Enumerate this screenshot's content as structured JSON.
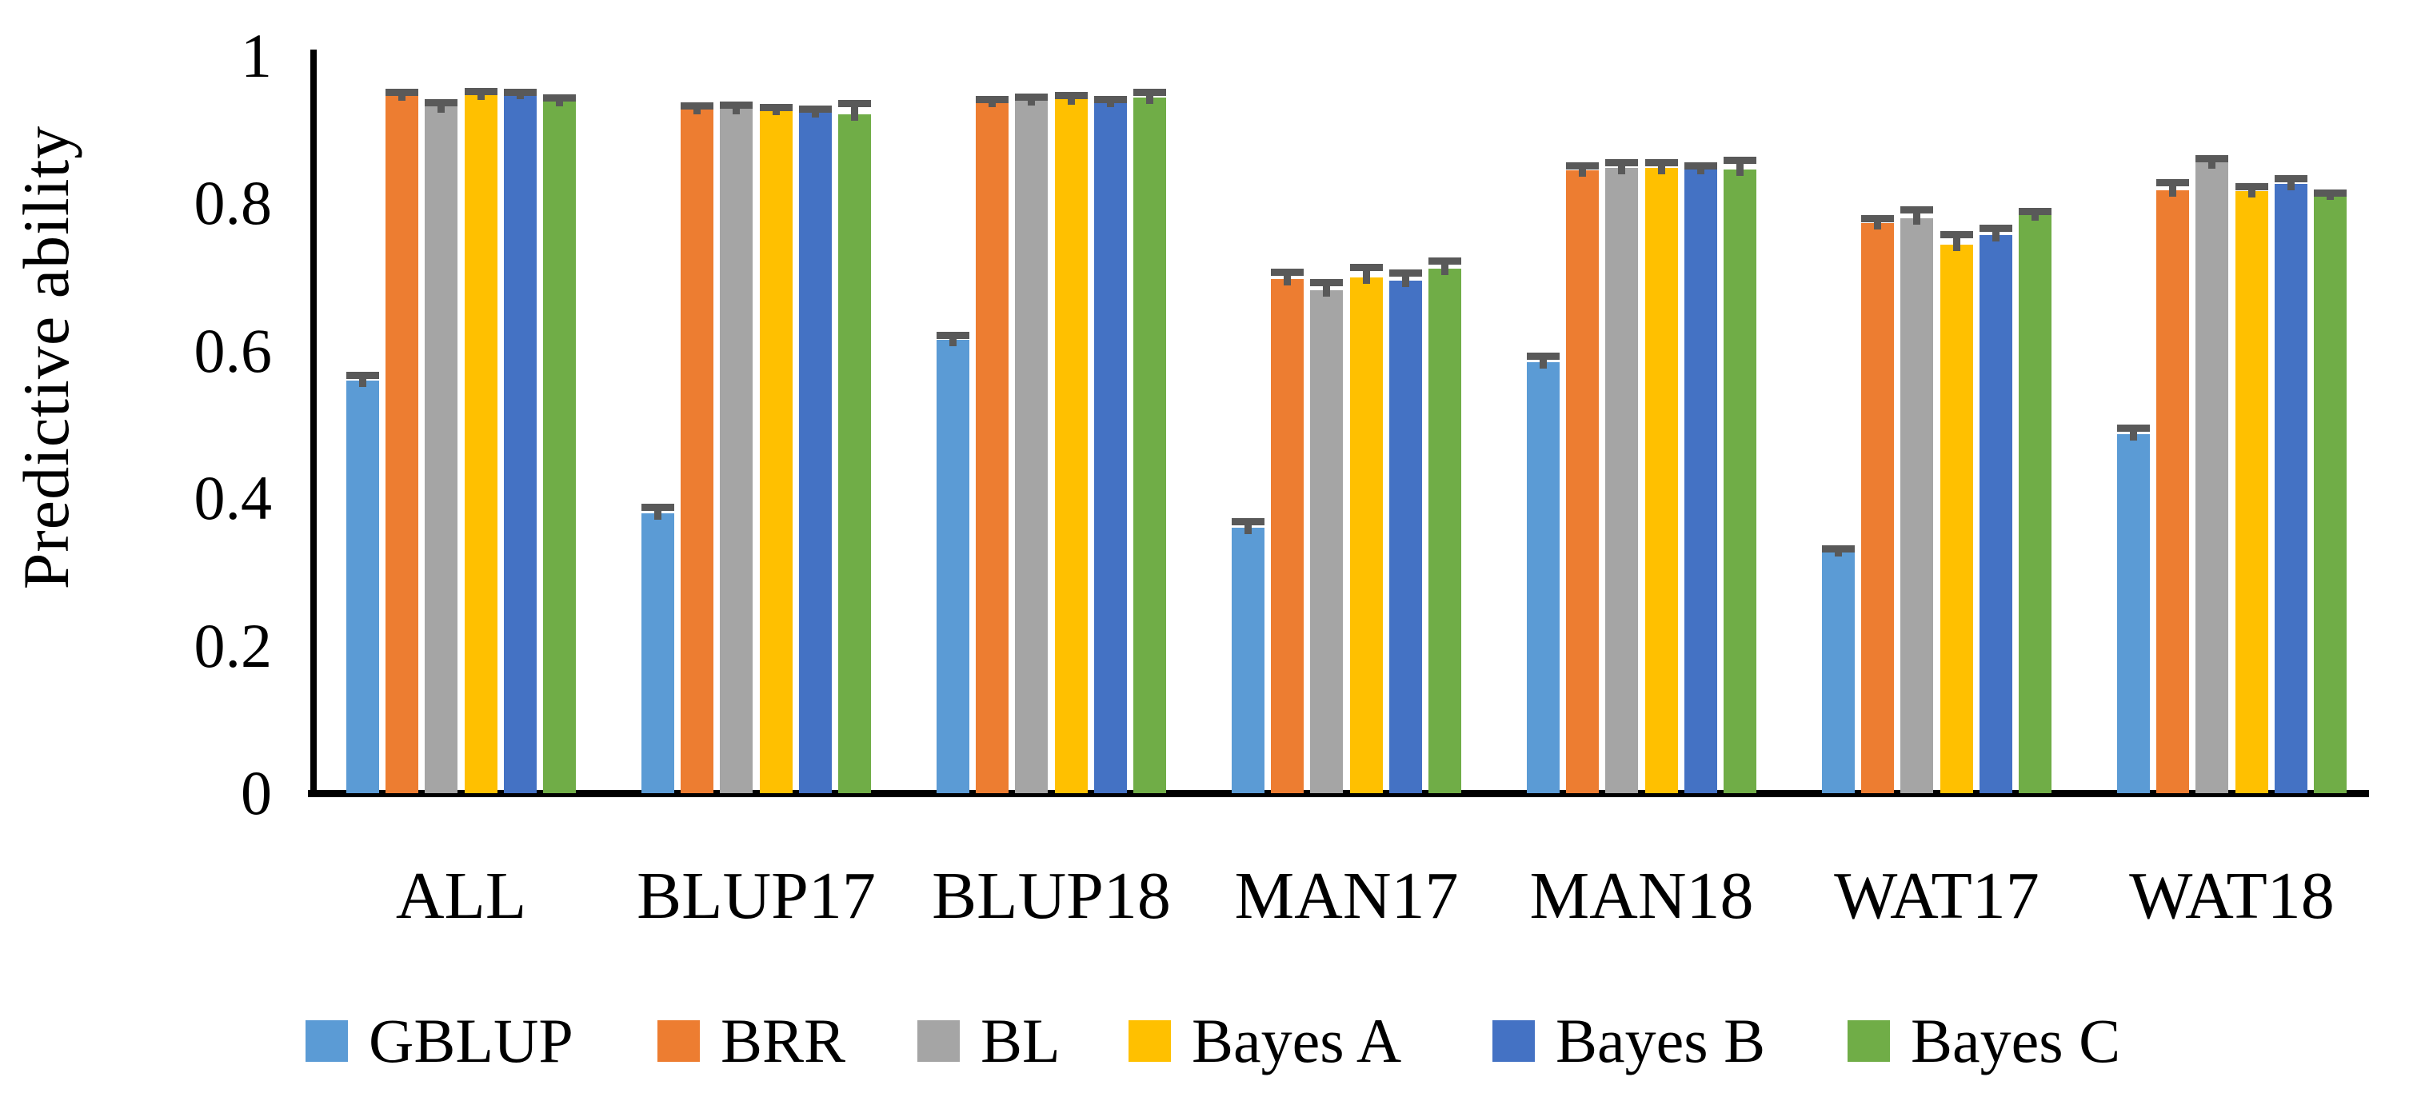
{
  "chart_data": {
    "type": "bar",
    "title": "",
    "xlabel": "",
    "ylabel": "Predictive ability",
    "ylim": [
      0,
      1
    ],
    "yticks": [
      0,
      0.2,
      0.4,
      0.6,
      0.8,
      1
    ],
    "ytick_labels": [
      "0",
      "0.2",
      "0.4",
      "0.6",
      "0.8",
      "1"
    ],
    "grid": false,
    "legend_position": "bottom",
    "error_bars": true,
    "error_color": "#595959",
    "axis_color": "#000000",
    "categories": [
      "ALL",
      "BLUP17",
      "BLUP18",
      "MAN17",
      "MAN18",
      "WAT17",
      "WAT18"
    ],
    "series": [
      {
        "name": "GBLUP",
        "color": "#5B9BD5",
        "values": [
          0.56,
          0.38,
          0.615,
          0.36,
          0.585,
          0.33,
          0.487
        ],
        "errors": [
          0.012,
          0.013,
          0.011,
          0.013,
          0.013,
          0.006,
          0.013
        ]
      },
      {
        "name": "BRR",
        "color": "#ED7D31",
        "values": [
          0.948,
          0.929,
          0.939,
          0.697,
          0.845,
          0.773,
          0.818
        ],
        "errors": [
          0.007,
          0.008,
          0.007,
          0.014,
          0.011,
          0.011,
          0.015
        ]
      },
      {
        "name": "BL",
        "color": "#A5A5A5",
        "values": [
          0.932,
          0.93,
          0.941,
          0.682,
          0.848,
          0.78,
          0.856
        ],
        "errors": [
          0.009,
          0.008,
          0.008,
          0.015,
          0.012,
          0.016,
          0.009
        ]
      },
      {
        "name": "Bayes A",
        "color": "#FFC000",
        "values": [
          0.949,
          0.928,
          0.943,
          0.7,
          0.848,
          0.744,
          0.817
        ],
        "errors": [
          0.008,
          0.007,
          0.008,
          0.018,
          0.012,
          0.019,
          0.011
        ]
      },
      {
        "name": "Bayes B",
        "color": "#4472C4",
        "values": [
          0.95,
          0.925,
          0.939,
          0.695,
          0.848,
          0.757,
          0.826
        ],
        "errors": [
          0.006,
          0.008,
          0.007,
          0.015,
          0.008,
          0.014,
          0.012
        ]
      },
      {
        "name": "Bayes C",
        "color": "#70AD47",
        "values": [
          0.94,
          0.921,
          0.944,
          0.711,
          0.846,
          0.785,
          0.813
        ],
        "errors": [
          0.008,
          0.019,
          0.011,
          0.016,
          0.017,
          0.009,
          0.006
        ]
      }
    ]
  }
}
